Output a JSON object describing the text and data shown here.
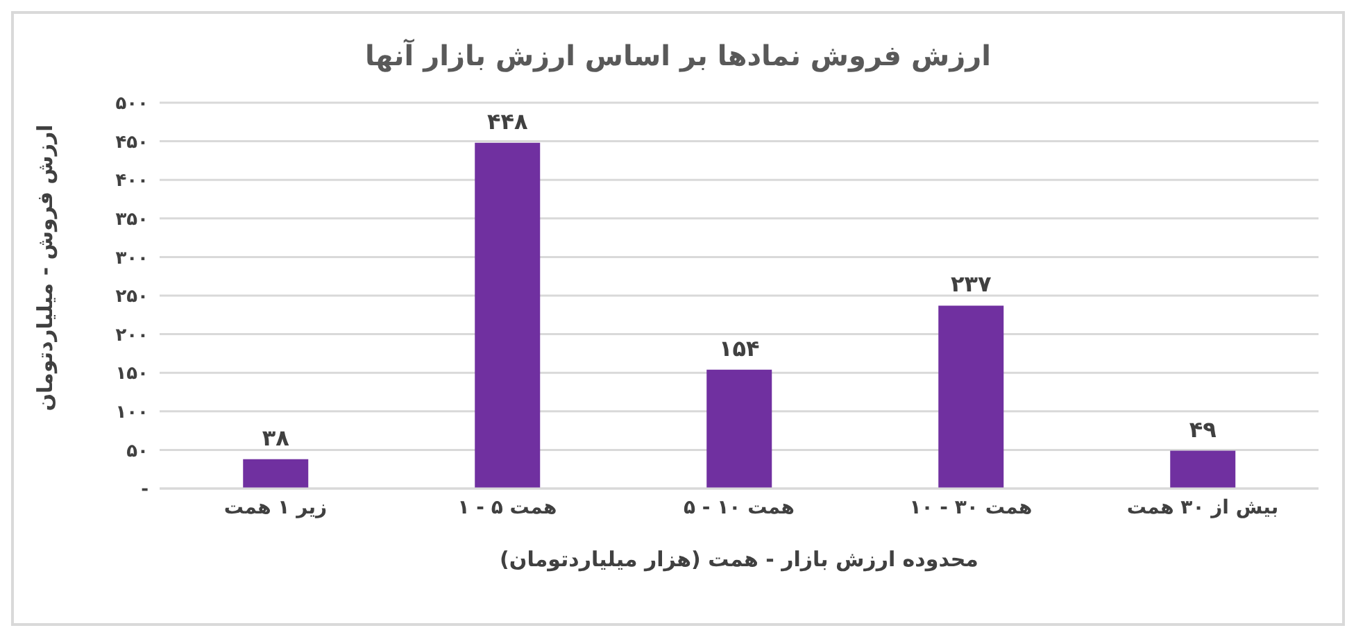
{
  "chart_data": {
    "type": "bar",
    "title": "ارزش فروش نمادها بر اساس ارزش بازار آنها",
    "xlabel": "محدوده ارزش بازار - همت (هزار میلیاردتومان)",
    "ylabel": "ارزش فروش - میلیاردتومان",
    "categories": [
      "زیر ۱ همت",
      "۱ - ۵ همت",
      "۵ - ۱۰ همت",
      "۱۰ - ۳۰ همت",
      "بیش از ۳۰ همت"
    ],
    "values": [
      38,
      448,
      154,
      237,
      49
    ],
    "value_labels": [
      "۳۸",
      "۴۴۸",
      "۱۵۴",
      "۲۳۷",
      "۴۹"
    ],
    "color": "#7030a0",
    "ylim": [
      0,
      500
    ],
    "yticks": [
      {
        "value": 0,
        "label": "-"
      },
      {
        "value": 50,
        "label": "۵۰"
      },
      {
        "value": 100,
        "label": "۱۰۰"
      },
      {
        "value": 150,
        "label": "۱۵۰"
      },
      {
        "value": 200,
        "label": "۲۰۰"
      },
      {
        "value": 250,
        "label": "۲۵۰"
      },
      {
        "value": 300,
        "label": "۳۰۰"
      },
      {
        "value": 350,
        "label": "۳۵۰"
      },
      {
        "value": 400,
        "label": "۴۰۰"
      },
      {
        "value": 450,
        "label": "۴۵۰"
      },
      {
        "value": 500,
        "label": "۵۰۰"
      }
    ],
    "grid": "y",
    "legend": false
  }
}
